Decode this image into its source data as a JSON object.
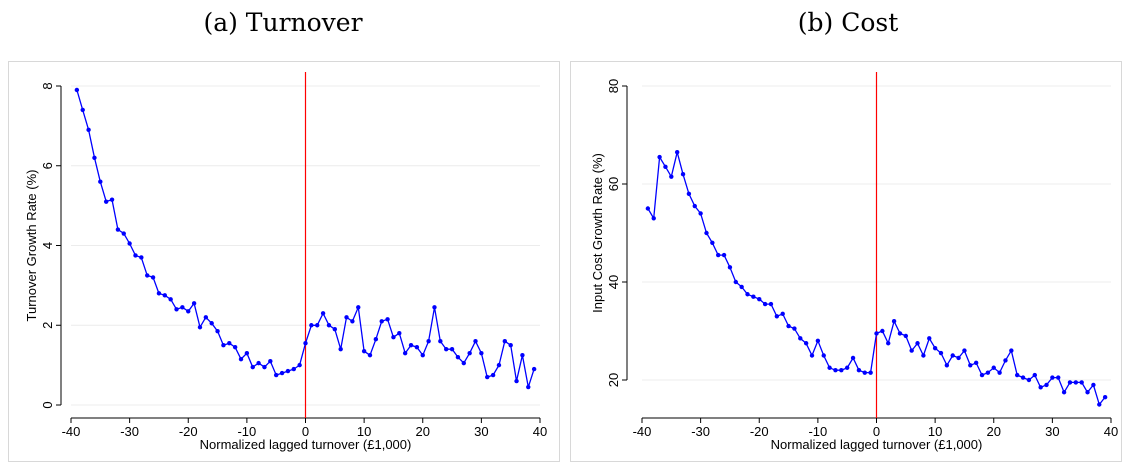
{
  "chart_data": [
    {
      "type": "line",
      "panel_title": "(a) Turnover",
      "xlabel": "Normalized lagged turnover (£1,000)",
      "ylabel": "Turnover Growth Rate (%)",
      "xlim": [
        -40,
        40
      ],
      "ylim": [
        0,
        8
      ],
      "xticks": [
        -40,
        -30,
        -20,
        -10,
        0,
        10,
        20,
        30,
        40
      ],
      "yticks": [
        0,
        2,
        4,
        6,
        8
      ],
      "grid": true,
      "line_color": "#0000ff",
      "vline": {
        "x": 0,
        "color": "#ff0000"
      },
      "x": [
        -39,
        -38,
        -37,
        -36,
        -35,
        -34,
        -33,
        -32,
        -31,
        -30,
        -29,
        -28,
        -27,
        -26,
        -25,
        -24,
        -23,
        -22,
        -21,
        -20,
        -19,
        -18,
        -17,
        -16,
        -15,
        -14,
        -13,
        -12,
        -11,
        -10,
        -9,
        -8,
        -7,
        -6,
        -5,
        -4,
        -3,
        -2,
        -1,
        0,
        1,
        2,
        3,
        4,
        5,
        6,
        7,
        8,
        9,
        10,
        11,
        12,
        13,
        14,
        15,
        16,
        17,
        18,
        19,
        20,
        21,
        22,
        23,
        24,
        25,
        26,
        27,
        28,
        29,
        30,
        31,
        32,
        33,
        34,
        35,
        36,
        37,
        38,
        39
      ],
      "y": [
        7.9,
        7.4,
        6.9,
        6.2,
        5.6,
        5.1,
        5.15,
        4.4,
        4.3,
        4.05,
        3.75,
        3.7,
        3.25,
        3.2,
        2.8,
        2.75,
        2.65,
        2.4,
        2.45,
        2.35,
        2.55,
        1.95,
        2.2,
        2.05,
        1.85,
        1.5,
        1.55,
        1.45,
        1.15,
        1.3,
        0.95,
        1.05,
        0.95,
        1.1,
        0.75,
        0.8,
        0.85,
        0.9,
        1.0,
        1.55,
        2.0,
        2.0,
        2.3,
        2.0,
        1.9,
        1.4,
        2.2,
        2.1,
        2.45,
        1.35,
        1.25,
        1.65,
        2.1,
        2.15,
        1.7,
        1.8,
        1.3,
        1.5,
        1.45,
        1.25,
        1.6,
        2.45,
        1.6,
        1.4,
        1.4,
        1.2,
        1.05,
        1.3,
        1.6,
        1.3,
        0.7,
        0.75,
        1.0,
        1.6,
        1.5,
        0.6,
        1.25,
        0.45,
        0.9
      ]
    },
    {
      "type": "line",
      "panel_title": "(b) Cost",
      "xlabel": "Normalized lagged turnover (£1,000)",
      "ylabel": "Input Cost Growth Rate (%)",
      "xlim": [
        -40,
        40
      ],
      "ylim": [
        20,
        80
      ],
      "xticks": [
        -40,
        -30,
        -20,
        -10,
        0,
        10,
        20,
        30,
        40
      ],
      "yticks": [
        20,
        40,
        60,
        80
      ],
      "grid": true,
      "line_color": "#0000ff",
      "vline": {
        "x": 0,
        "color": "#ff0000"
      },
      "x": [
        -39,
        -38,
        -37,
        -36,
        -35,
        -34,
        -33,
        -32,
        -31,
        -30,
        -29,
        -28,
        -27,
        -26,
        -25,
        -24,
        -23,
        -22,
        -21,
        -20,
        -19,
        -18,
        -17,
        -16,
        -15,
        -14,
        -13,
        -12,
        -11,
        -10,
        -9,
        -8,
        -7,
        -6,
        -5,
        -4,
        -3,
        -2,
        -1,
        0,
        1,
        2,
        3,
        4,
        5,
        6,
        7,
        8,
        9,
        10,
        11,
        12,
        13,
        14,
        15,
        16,
        17,
        18,
        19,
        20,
        21,
        22,
        23,
        24,
        25,
        26,
        27,
        28,
        29,
        30,
        31,
        32,
        33,
        34,
        35,
        36,
        37,
        38,
        39
      ],
      "y": [
        55,
        53,
        65.5,
        63.5,
        61.5,
        66.5,
        62,
        58,
        55.5,
        54,
        50,
        48,
        45.5,
        45.5,
        43,
        40,
        39,
        37.5,
        37,
        36.5,
        35.5,
        35.5,
        33,
        33.5,
        31,
        30.5,
        28.5,
        27.5,
        25,
        28,
        25,
        22.5,
        22,
        22,
        22.5,
        24.5,
        22,
        21.5,
        21.5,
        29.5,
        30,
        27.5,
        32,
        29.5,
        29,
        26,
        27.5,
        25,
        28.5,
        26.5,
        25.5,
        23,
        25,
        24.5,
        26,
        23,
        23.5,
        21,
        21.5,
        22.5,
        21.5,
        24,
        26,
        21,
        20.5,
        20,
        21,
        18.5,
        19,
        20.5,
        20.5,
        17.5,
        19.5,
        19.5,
        19.5,
        17.5,
        19,
        15,
        16.5
      ]
    }
  ]
}
